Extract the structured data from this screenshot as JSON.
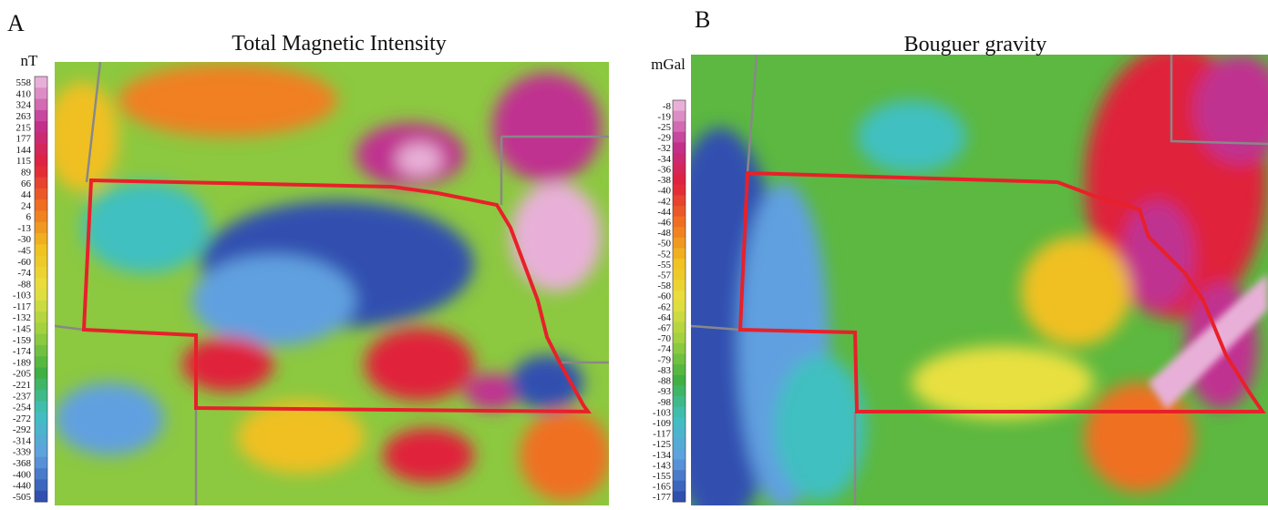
{
  "panels": [
    {
      "letter": "A",
      "title": "Total Magnetic Intensity",
      "unit": "nT",
      "scale": [
        558,
        410,
        324,
        263,
        215,
        177,
        144,
        115,
        89,
        66,
        44,
        24,
        6,
        -13,
        -30,
        -45,
        -60,
        -74,
        -88,
        -103,
        -117,
        -132,
        -145,
        -159,
        -174,
        -189,
        -205,
        -221,
        -237,
        -254,
        -272,
        -292,
        -314,
        -339,
        -368,
        -400,
        -440,
        -505
      ]
    },
    {
      "letter": "B",
      "title": "Bouguer gravity",
      "unit": "mGal",
      "scale": [
        -8,
        -19,
        -25,
        -29,
        -32,
        -34,
        -36,
        -38,
        -40,
        -42,
        -44,
        -46,
        -48,
        -50,
        -52,
        -55,
        -57,
        -58,
        -60,
        -62,
        -64,
        -67,
        -70,
        -74,
        -79,
        -83,
        -88,
        -93,
        -98,
        -103,
        -109,
        -117,
        -125,
        -134,
        -143,
        -155,
        -165,
        -177
      ]
    }
  ]
}
